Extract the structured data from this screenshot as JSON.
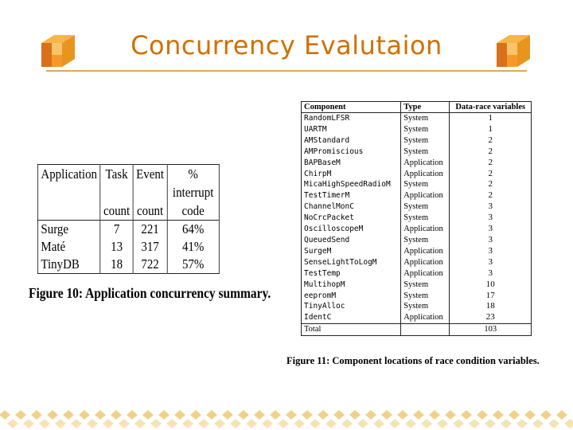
{
  "slide": {
    "title": "Concurrency Evalutaion",
    "accent_color": "#d07000",
    "cube_icon": "orange-cube-icon"
  },
  "app_table": {
    "headers": [
      [
        "Application",
        "Task",
        "Event",
        "% interrupt"
      ],
      [
        "",
        "count",
        "count",
        "code"
      ]
    ],
    "rows": [
      [
        "Surge",
        "7",
        "221",
        "64%"
      ],
      [
        "Maté",
        "13",
        "317",
        "41%"
      ],
      [
        "TinyDB",
        "18",
        "722",
        "57%"
      ]
    ],
    "caption": "Figure 10: Application concurrency summary."
  },
  "component_table": {
    "headers": [
      "Component",
      "Type",
      "Data-race variables"
    ],
    "rows": [
      [
        "RandomLFSR",
        "System",
        "1"
      ],
      [
        "UARTM",
        "System",
        "1"
      ],
      [
        "AMStandard",
        "System",
        "2"
      ],
      [
        "AMPromiscious",
        "System",
        "2"
      ],
      [
        "BAPBaseM",
        "Application",
        "2"
      ],
      [
        "ChirpM",
        "Application",
        "2"
      ],
      [
        "MicaHighSpeedRadioM",
        "System",
        "2"
      ],
      [
        "TestTimerM",
        "Application",
        "2"
      ],
      [
        "ChannelMonC",
        "System",
        "3"
      ],
      [
        "NoCrcPacket",
        "System",
        "3"
      ],
      [
        "OscilloscopeM",
        "Application",
        "3"
      ],
      [
        "QueuedSend",
        "System",
        "3"
      ],
      [
        "SurgeM",
        "Application",
        "3"
      ],
      [
        "SenseLightToLogM",
        "Application",
        "3"
      ],
      [
        "TestTemp",
        "Application",
        "3"
      ],
      [
        "MultihopM",
        "System",
        "10"
      ],
      [
        "eepromM",
        "System",
        "17"
      ],
      [
        "TinyAlloc",
        "System",
        "18"
      ],
      [
        "IdentC",
        "Application",
        "23"
      ]
    ],
    "total_label": "Total",
    "total_value": "103",
    "caption": "Figure 11: Component locations of race condition variables."
  }
}
